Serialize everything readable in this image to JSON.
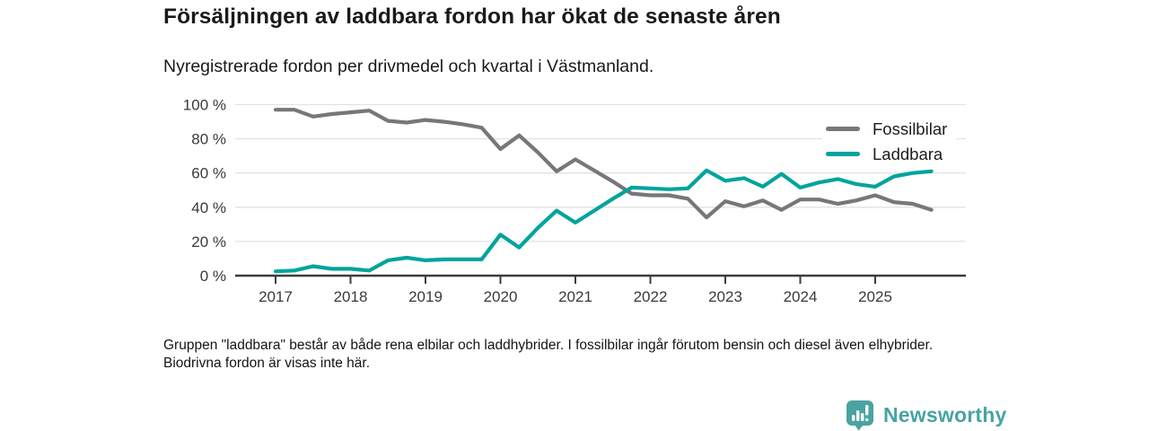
{
  "header": {
    "title": "Försäljningen av laddbara fordon har ökat de senaste åren",
    "subtitle": "Nyregistrerade fordon per drivmedel och kvartal i Västmanland."
  },
  "chart_data": {
    "type": "line",
    "unit": "%",
    "grid": true,
    "legend_position": "top-right",
    "ylim": [
      0,
      100
    ],
    "y_ticks": [
      0,
      20,
      40,
      60,
      80,
      100
    ],
    "y_tick_suffix": " %",
    "x_tick_labels": [
      "2017",
      "2018",
      "2019",
      "2020",
      "2021",
      "2022",
      "2023",
      "2024",
      "2025"
    ],
    "x": [
      "2017-Q1",
      "2017-Q2",
      "2017-Q3",
      "2017-Q4",
      "2018-Q1",
      "2018-Q2",
      "2018-Q3",
      "2018-Q4",
      "2019-Q1",
      "2019-Q2",
      "2019-Q3",
      "2019-Q4",
      "2020-Q1",
      "2020-Q2",
      "2020-Q3",
      "2020-Q4",
      "2021-Q1",
      "2021-Q2",
      "2021-Q3",
      "2021-Q4",
      "2022-Q1",
      "2022-Q2",
      "2022-Q3",
      "2022-Q4",
      "2023-Q1",
      "2023-Q2",
      "2023-Q3",
      "2023-Q4",
      "2024-Q1",
      "2024-Q2",
      "2024-Q3",
      "2024-Q4",
      "2025-Q1",
      "2025-Q2",
      "2025-Q3",
      "2025-Q4"
    ],
    "series": [
      {
        "name": "Fossilbilar",
        "color": "#76767b",
        "values": [
          97,
          97,
          93,
          94.5,
          95.5,
          96.5,
          90.5,
          89.5,
          91,
          90,
          88.5,
          86.5,
          74,
          82,
          72,
          61,
          68,
          61.5,
          55,
          48,
          47,
          47,
          45,
          34,
          43.5,
          40.5,
          44,
          38.5,
          44.5,
          44.5,
          42,
          44,
          47,
          43,
          42,
          38.5
        ]
      },
      {
        "name": "Laddbara",
        "color": "#00a49c",
        "values": [
          2.5,
          3,
          5.5,
          4,
          4,
          3,
          9,
          10.5,
          9,
          9.5,
          9.5,
          9.5,
          24,
          16.5,
          28,
          38,
          31,
          38,
          45,
          51.5,
          51,
          50.5,
          51,
          61.5,
          55.5,
          57,
          52,
          59.5,
          51.5,
          54.5,
          56.5,
          53.5,
          52,
          58,
          60,
          61
        ]
      }
    ],
    "grid_color": "#e2e2e2",
    "axis_color": "#3c3c3c"
  },
  "footer": {
    "note": "Gruppen \"laddbara\" består av både rena elbilar och laddhybrider. I fossilbilar ingår förutom bensin och diesel även elhybrider. Biodrivna fordon är visas inte här."
  },
  "branding": {
    "logo_text": "Newsworthy",
    "logo_color": "#4aa3a2",
    "logo_icon": "bar-chart-speech-bubble-icon"
  }
}
